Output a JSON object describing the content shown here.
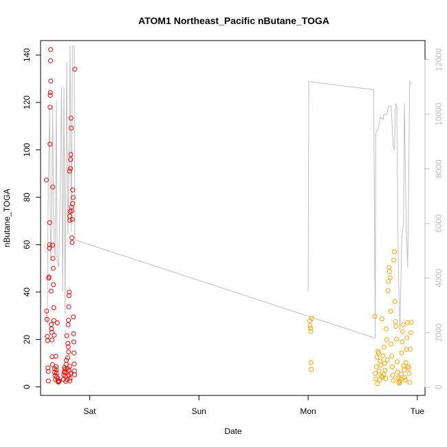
{
  "chart_data": {
    "type": "scatter",
    "title": "ATOM1 Northeast_Pacific nButane_TOGA",
    "xlabel": "Date",
    "ylabel": "nButane_TOGA",
    "x_unit": "days from Fri 00:00",
    "xlim": [
      0.55,
      4.07
    ],
    "ylim": [
      -3.6,
      146.1
    ],
    "y2lim": [
      -300,
      12700
    ],
    "x_ticks": [
      {
        "value": 1,
        "label": "Sat"
      },
      {
        "value": 2,
        "label": "Sun"
      },
      {
        "value": 3,
        "label": "Mon"
      },
      {
        "value": 4,
        "label": "Tue"
      }
    ],
    "y_ticks": [
      0,
      20,
      40,
      60,
      80,
      100,
      120,
      140
    ],
    "y2_ticks": [
      0,
      2000,
      4000,
      6000,
      8000,
      10000,
      12000
    ],
    "colors": {
      "red": "#ff0000",
      "orange": "#ffa500",
      "line": "#bebebe"
    },
    "series": [
      {
        "color": "red",
        "points": [
          [
            0.603,
            87.3
          ],
          [
            0.606,
            32.0
          ],
          [
            0.609,
            28.5
          ],
          [
            0.612,
            21.3
          ],
          [
            0.615,
            19.5
          ],
          [
            0.618,
            8.0
          ],
          [
            0.62,
            6.5
          ],
          [
            0.622,
            2.5
          ],
          [
            0.625,
            45.9
          ],
          [
            0.628,
            46.4
          ],
          [
            0.631,
            58.5
          ],
          [
            0.633,
            60.0
          ],
          [
            0.634,
            69.3
          ],
          [
            0.636,
            102.4
          ],
          [
            0.637,
            118.0
          ],
          [
            0.639,
            123.0
          ],
          [
            0.64,
            124.2
          ],
          [
            0.641,
            137.6
          ],
          [
            0.642,
            142.3
          ],
          [
            0.644,
            129.0
          ],
          [
            0.646,
            40.4
          ],
          [
            0.648,
            26.4
          ],
          [
            0.65,
            24.5
          ],
          [
            0.652,
            23.0
          ],
          [
            0.654,
            19.8
          ],
          [
            0.656,
            12.7
          ],
          [
            0.658,
            9.4
          ],
          [
            0.66,
            59.8
          ],
          [
            0.662,
            84.3
          ],
          [
            0.664,
            54.2
          ],
          [
            0.666,
            50.0
          ],
          [
            0.668,
            43.1
          ],
          [
            0.67,
            33.4
          ],
          [
            0.672,
            28.0
          ],
          [
            0.675,
            21.8
          ],
          [
            0.678,
            7.6
          ],
          [
            0.68,
            6.1
          ],
          [
            0.683,
            4.8
          ],
          [
            0.686,
            3.1
          ],
          [
            0.69,
            12.9
          ],
          [
            0.692,
            8.5
          ],
          [
            0.694,
            7.2
          ],
          [
            0.697,
            5.9
          ],
          [
            0.7,
            4.2
          ],
          [
            0.703,
            27.0
          ],
          [
            0.706,
            3.6
          ],
          [
            0.71,
            2.5
          ],
          [
            0.713,
            2.0
          ],
          [
            0.716,
            2.3
          ],
          [
            0.72,
            2.4
          ],
          [
            0.76,
            3.2
          ],
          [
            0.763,
            5.0
          ],
          [
            0.766,
            6.3
          ],
          [
            0.769,
            8.2
          ],
          [
            0.772,
            7.4
          ],
          [
            0.775,
            6.0
          ],
          [
            0.778,
            4.4
          ],
          [
            0.781,
            2.3
          ],
          [
            0.784,
            9.5
          ],
          [
            0.787,
            11.2
          ],
          [
            0.79,
            21.6
          ],
          [
            0.793,
            3.1
          ],
          [
            0.796,
            7.8
          ],
          [
            0.799,
            12.3
          ],
          [
            0.802,
            26.2
          ],
          [
            0.805,
            28.1
          ],
          [
            0.808,
            33.8
          ],
          [
            0.811,
            38.5
          ],
          [
            0.813,
            40.0
          ],
          [
            0.815,
            91.0
          ],
          [
            0.817,
            72.0
          ],
          [
            0.819,
            70.3
          ],
          [
            0.821,
            74.0
          ],
          [
            0.823,
            92.1
          ],
          [
            0.825,
            95.9
          ],
          [
            0.827,
            98.0
          ],
          [
            0.829,
            113.4
          ],
          [
            0.831,
            109.2
          ],
          [
            0.833,
            75.8
          ],
          [
            0.835,
            74.2
          ],
          [
            0.837,
            62.9
          ],
          [
            0.839,
            60.9
          ],
          [
            0.841,
            70.6
          ],
          [
            0.843,
            77.3
          ],
          [
            0.845,
            83.1
          ],
          [
            0.847,
            79.9
          ],
          [
            0.8,
            18.4
          ],
          [
            0.803,
            16.9
          ],
          [
            0.806,
            14.7
          ],
          [
            0.809,
            4.8
          ],
          [
            0.812,
            6.9
          ],
          [
            0.815,
            8.7
          ],
          [
            0.818,
            2.5
          ],
          [
            0.821,
            3.6
          ],
          [
            0.824,
            5.7
          ],
          [
            0.85,
            29.5
          ],
          [
            0.852,
            22.4
          ],
          [
            0.854,
            19.0
          ],
          [
            0.856,
            14.3
          ],
          [
            0.858,
            9.7
          ],
          [
            0.86,
            6.7
          ],
          [
            0.862,
            5.1
          ],
          [
            0.864,
            134.0
          ]
        ]
      },
      {
        "color": "orange",
        "points": [
          [
            3.015,
            27.9
          ],
          [
            3.018,
            25.8
          ],
          [
            3.021,
            24.8
          ],
          [
            3.024,
            23.4
          ],
          [
            3.027,
            10.2
          ],
          [
            3.03,
            7.4
          ],
          [
            3.033,
            28.9
          ],
          [
            3.61,
            29.7
          ],
          [
            3.615,
            5.7
          ],
          [
            3.62,
            3.4
          ],
          [
            3.625,
            8.5
          ],
          [
            3.63,
            12.5
          ],
          [
            3.635,
            1.4
          ],
          [
            3.64,
            15.0
          ],
          [
            3.645,
            14.3
          ],
          [
            3.65,
            6.6
          ],
          [
            3.655,
            3.0
          ],
          [
            3.66,
            10.9
          ],
          [
            3.665,
            9.2
          ],
          [
            3.67,
            4.5
          ],
          [
            3.675,
            28.7
          ],
          [
            3.68,
            4.0
          ],
          [
            3.685,
            13.1
          ],
          [
            3.69,
            5.2
          ],
          [
            3.695,
            16.8
          ],
          [
            3.7,
            9.9
          ],
          [
            3.705,
            7.0
          ],
          [
            3.71,
            3.5
          ],
          [
            3.715,
            24.5
          ],
          [
            3.72,
            19.9
          ],
          [
            3.725,
            11.4
          ],
          [
            3.73,
            40.6
          ],
          [
            3.735,
            44.5
          ],
          [
            3.74,
            50.4
          ],
          [
            3.745,
            48.7
          ],
          [
            3.75,
            46.1
          ],
          [
            3.755,
            31.9
          ],
          [
            3.76,
            18.1
          ],
          [
            3.765,
            13.0
          ],
          [
            3.77,
            8.4
          ],
          [
            3.775,
            4.9
          ],
          [
            3.78,
            2.7
          ],
          [
            3.785,
            53.5
          ],
          [
            3.79,
            57.0
          ],
          [
            3.795,
            36.0
          ],
          [
            3.8,
            27.6
          ],
          [
            3.805,
            25.5
          ],
          [
            3.81,
            20.2
          ],
          [
            3.815,
            10.6
          ],
          [
            3.82,
            6.2
          ],
          [
            3.825,
            3.8
          ],
          [
            3.83,
            2.0
          ],
          [
            3.835,
            1.6
          ],
          [
            3.84,
            2.5
          ],
          [
            3.845,
            3.3
          ],
          [
            3.85,
            5.4
          ],
          [
            3.855,
            14.3
          ],
          [
            3.86,
            19.0
          ],
          [
            3.865,
            23.3
          ],
          [
            3.87,
            26.2
          ],
          [
            3.875,
            9.0
          ],
          [
            3.88,
            7.1
          ],
          [
            3.885,
            4.0
          ],
          [
            3.89,
            2.9
          ],
          [
            3.895,
            10.2
          ],
          [
            3.9,
            15.8
          ],
          [
            3.905,
            20.7
          ],
          [
            3.91,
            27.1
          ],
          [
            3.915,
            8.6
          ],
          [
            3.92,
            7.9
          ],
          [
            3.925,
            5.6
          ],
          [
            3.93,
            1.9
          ],
          [
            3.935,
            15.9
          ],
          [
            3.94,
            22.9
          ],
          [
            3.945,
            27.2
          ]
        ]
      }
    ],
    "line_series": {
      "axis": "right",
      "points": [
        [
          0.6,
          2800
        ],
        [
          0.612,
          2300
        ],
        [
          0.62,
          7200
        ],
        [
          0.633,
          10300
        ],
        [
          0.642,
          4600
        ],
        [
          0.652,
          6000
        ],
        [
          0.66,
          10300
        ],
        [
          0.672,
          5200
        ],
        [
          0.684,
          4800
        ],
        [
          0.694,
          10500
        ],
        [
          0.702,
          4600
        ],
        [
          0.716,
          4400
        ],
        [
          0.726,
          6200
        ],
        [
          0.742,
          11000
        ],
        [
          0.752,
          3500
        ],
        [
          0.764,
          11000
        ],
        [
          0.774,
          2700
        ],
        [
          0.79,
          11900
        ],
        [
          0.8,
          5600
        ],
        [
          0.812,
          8400
        ],
        [
          0.82,
          12500
        ],
        [
          0.832,
          5700
        ],
        [
          0.842,
          12500
        ],
        [
          0.858,
          12500
        ],
        [
          0.864,
          5400
        ],
        [
          3.0,
          3500
        ],
        [
          3.006,
          11200
        ],
        [
          3.2,
          11100
        ],
        [
          3.4,
          11000
        ],
        [
          3.6,
          10900
        ],
        [
          3.614,
          1800
        ],
        [
          3.62,
          9300
        ],
        [
          3.645,
          9500
        ],
        [
          3.66,
          9900
        ],
        [
          3.685,
          9800
        ],
        [
          3.695,
          10000
        ],
        [
          3.72,
          10000
        ],
        [
          3.735,
          10300
        ],
        [
          3.76,
          10300
        ],
        [
          3.78,
          8800
        ],
        [
          3.79,
          8700
        ],
        [
          3.8,
          10400
        ],
        [
          3.812,
          10300
        ],
        [
          3.825,
          4600
        ],
        [
          3.84,
          2100
        ],
        [
          3.858,
          5500
        ],
        [
          3.873,
          6000
        ],
        [
          3.882,
          10400
        ],
        [
          3.898,
          5800
        ],
        [
          3.912,
          4400
        ],
        [
          3.93,
          11200
        ],
        [
          3.945,
          11100
        ]
      ]
    },
    "line_trend": [
      [
        0.864,
        5400
      ],
      [
        3.614,
        1800
      ]
    ]
  }
}
